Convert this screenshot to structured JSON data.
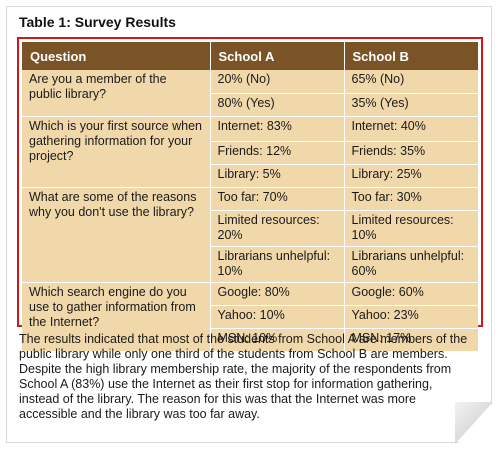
{
  "title": "Table 1: Survey Results",
  "table": {
    "headers": [
      "Question",
      "School A",
      "School B"
    ],
    "groups": [
      {
        "question": "Are you a member of the public library?",
        "rows": [
          [
            "20% (No)",
            "65% (No)"
          ],
          [
            "80% (Yes)",
            "35% (Yes)"
          ]
        ]
      },
      {
        "question": "Which is your first source when gathering information for your project?",
        "rows": [
          [
            "Internet: 83%",
            "Internet: 40%"
          ],
          [
            "Friends: 12%",
            "Friends: 35%"
          ],
          [
            "Library: 5%",
            "Library: 25%"
          ]
        ]
      },
      {
        "question": "What are some of the reasons why you don't use the library?",
        "rows": [
          [
            "Too far: 70%",
            "Too far: 30%"
          ],
          [
            "Limited resources: 20%",
            "Limited resources: 10%"
          ],
          [
            "Librarians unhelpful: 10%",
            "Librarians unhelpful: 60%"
          ]
        ]
      },
      {
        "question": "Which search engine do you use to gather information from the Internet?",
        "rows": [
          [
            "Google: 80%",
            "Google: 60%"
          ],
          [
            "Yahoo: 10%",
            "Yahoo: 23%"
          ],
          [
            "MSN: 10%",
            "MSN: 17%"
          ]
        ]
      }
    ]
  },
  "caption": "The results indicated that most of the students from School A are members of the public library while only one third of the students from School B are members. Despite the high library membership rate, the majority of the respondents from School A (83%) use the Internet as their first stop for information gathering, instead of the library. The reason for this was that the Internet was more accessible and the library was too far away."
}
